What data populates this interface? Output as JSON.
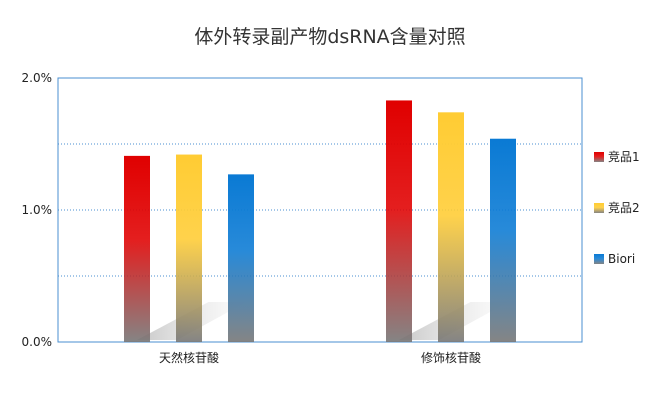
{
  "chart_data": {
    "type": "bar",
    "title": "体外转录副产物dsRNA含量对照",
    "xlabel": "",
    "ylabel": "",
    "categories": [
      "天然核苷酸",
      "修饰核苷酸"
    ],
    "series": [
      {
        "name": "竞品1",
        "values": [
          1.41,
          1.83
        ],
        "color": "#e00000"
      },
      {
        "name": "竞品2",
        "values": [
          1.42,
          1.74
        ],
        "color": "#ffcc33"
      },
      {
        "name": "Biori",
        "values": [
          1.27,
          1.54
        ],
        "color": "#0a7ad4"
      }
    ],
    "ylim": [
      0,
      2.0
    ],
    "yticks": [
      0,
      1.0,
      2.0
    ],
    "ytick_labels": [
      "0.0%",
      "1.0%",
      "2.0%"
    ],
    "grid_minor": [
      0.5,
      1.5
    ],
    "grid": true,
    "legend_position": "right"
  }
}
